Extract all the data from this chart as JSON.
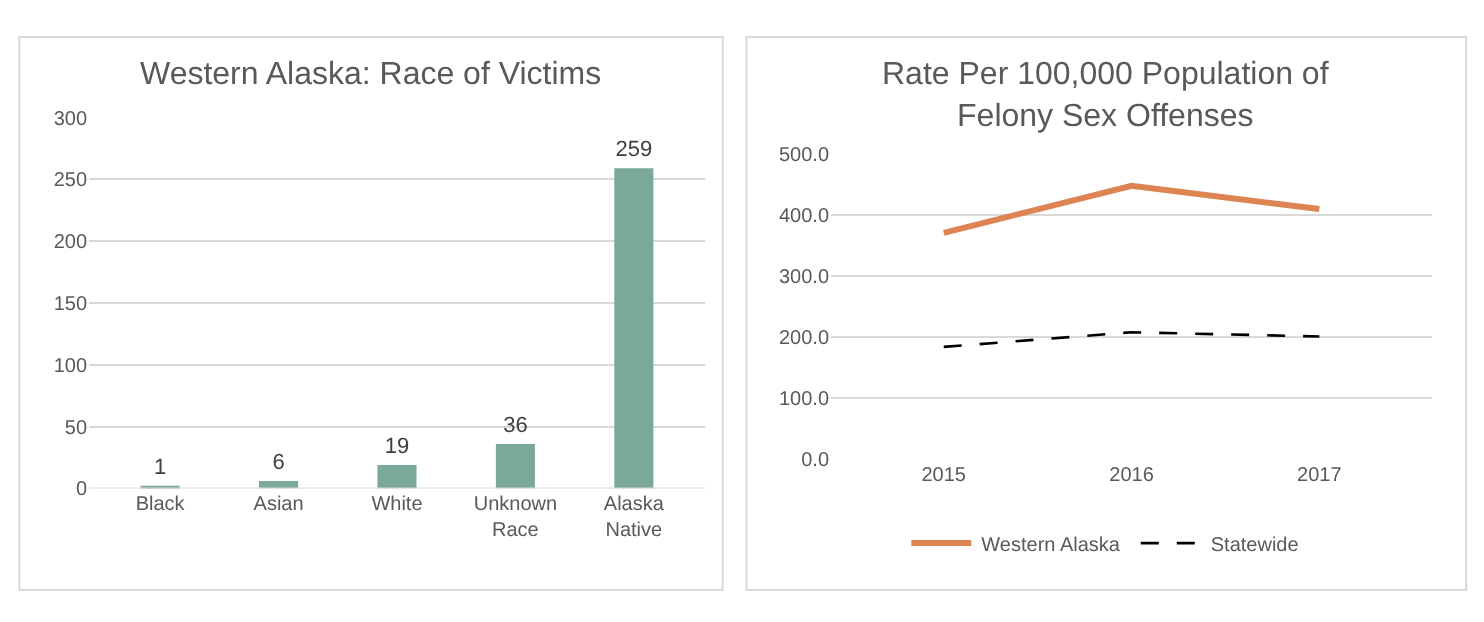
{
  "chart_data": [
    {
      "type": "bar",
      "title": "Western Alaska: Race of Victims",
      "categories": [
        "Black",
        "Asian",
        "White",
        "Unknown Race",
        "Alaska Native"
      ],
      "values": [
        1,
        6,
        19,
        36,
        259
      ],
      "color": "#7aa89a",
      "ylim": [
        0,
        300
      ],
      "yticks": [
        0,
        50,
        100,
        150,
        200,
        250,
        300
      ],
      "grid": "y",
      "data_labels": true
    },
    {
      "type": "line",
      "title": "Rate Per 100,000 Population of Felony Sex Offenses",
      "categories": [
        "2015",
        "2016",
        "2017"
      ],
      "series": [
        {
          "name": "Western Alaska",
          "color": "#dd8452",
          "values": [
            370,
            447,
            409
          ],
          "line_style": "solid"
        },
        {
          "name": "Statewide",
          "color": "#000000",
          "values": [
            183,
            207,
            200
          ],
          "line_style": "dashed"
        }
      ],
      "ylim": [
        0,
        500
      ],
      "yticks": [
        {
          "value": 0,
          "label": "0.0"
        },
        {
          "value": 100,
          "label": "100.0"
        },
        {
          "value": 200,
          "label": "200.0"
        },
        {
          "value": 300,
          "label": "300.0"
        },
        {
          "value": 400,
          "label": "400.0"
        },
        {
          "value": 500,
          "label": "500.0"
        }
      ],
      "grid": "y",
      "legend": "bottom",
      "marker": "none"
    }
  ]
}
